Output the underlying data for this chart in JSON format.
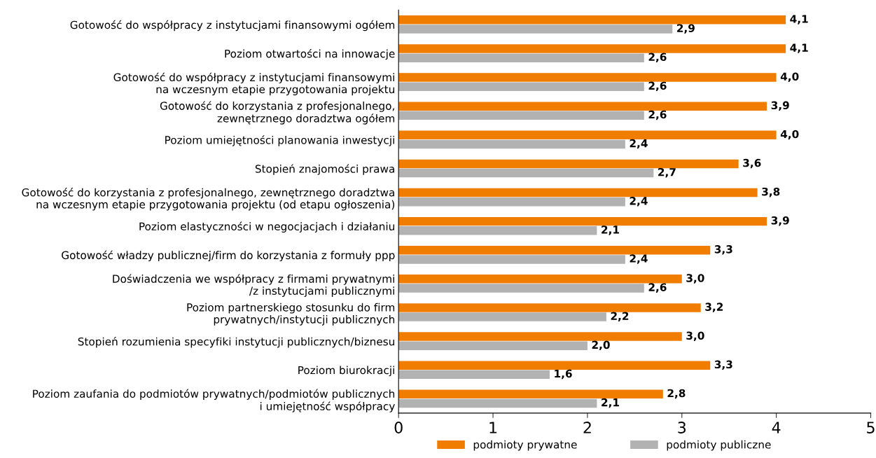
{
  "chart_data": {
    "type": "bar",
    "orientation": "horizontal",
    "categories": [
      "Gotowość do współpracy z instytucjami finansowymi ogółem",
      "Poziom otwartości na innowacje",
      "Gotowość do współpracy z instytucjami finansowymi\nna wczesnym etapie przygotowania projektu",
      "Gotowość do korzystania z profesjonalnego,\nzewnętrznego doradztwa ogółem",
      "Poziom umiejętności planowania inwestycji",
      "Stopień znajomości prawa",
      "Gotowość do korzystania z profesjonalnego, zewnętrznego doradztwa\nna wczesnym etapie przygotowania projektu (od etapu ogłoszenia)",
      "Poziom elastyczności w negocjacjach i działaniu",
      "Gotowość władzy publicznej/firm do korzystania z formuły ppp",
      "Doświadczenia we współpracy z firmami prywatnymi\n/z instytucjami publicznymi",
      "Poziom partnerskiego stosunku do firm\nprywatnych/instytucji publicznych",
      "Stopień rozumienia specyfiki instytucji publicznych/biznesu",
      "Poziom biurokracji",
      "Poziom zaufania do podmiotów prywatnych/podmiotów publicznych\ni umiejętność współpracy"
    ],
    "series": [
      {
        "name": "podmioty prywatne",
        "color": "#f07d00",
        "values": [
          4.1,
          4.1,
          4.0,
          3.9,
          4.0,
          3.6,
          3.8,
          3.9,
          3.3,
          3.0,
          3.2,
          3.0,
          3.3,
          2.8
        ],
        "value_labels": [
          "4,1",
          "4,1",
          "4,0",
          "3,9",
          "4,0",
          "3,6",
          "3,8",
          "3,9",
          "3,3",
          "3,0",
          "3,2",
          "3,0",
          "3,3",
          "2,8"
        ]
      },
      {
        "name": "podmioty publiczne",
        "color": "#b2b2b2",
        "values": [
          2.9,
          2.6,
          2.6,
          2.6,
          2.4,
          2.7,
          2.4,
          2.1,
          2.4,
          2.6,
          2.2,
          2.0,
          1.6,
          2.1
        ],
        "value_labels": [
          "2,9",
          "2,6",
          "2,6",
          "2,6",
          "2,4",
          "2,7",
          "2,4",
          "2,1",
          "2,4",
          "2,6",
          "2,2",
          "2,0",
          "1,6",
          "2,1"
        ]
      }
    ],
    "xlim": [
      0,
      5
    ],
    "xticks": [
      0,
      1,
      2,
      3,
      4,
      5
    ],
    "grid": false,
    "legend": "bottom"
  }
}
